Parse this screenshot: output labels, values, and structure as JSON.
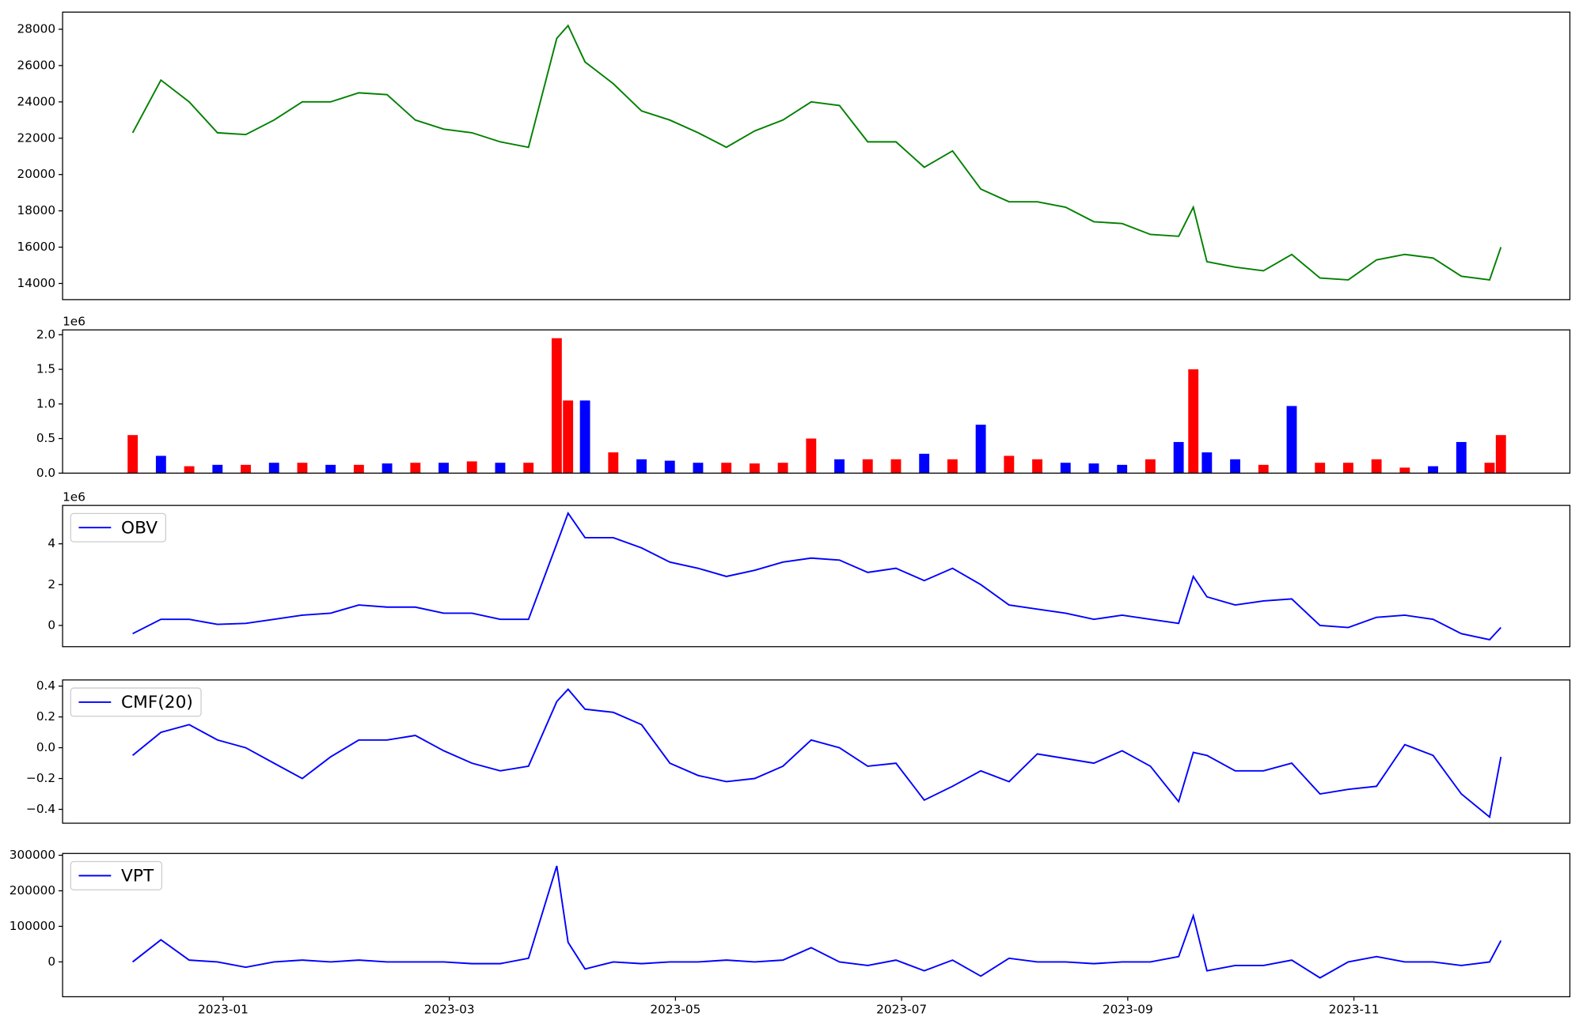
{
  "chart_data": [
    {
      "type": "line",
      "x": [
        -0.8,
        -0.55,
        -0.3,
        -0.05,
        0.2,
        0.45,
        0.7,
        0.95,
        1.2,
        1.45,
        1.7,
        1.95,
        2.2,
        2.45,
        2.7,
        2.95,
        3.05,
        3.2,
        3.45,
        3.7,
        3.95,
        4.2,
        4.45,
        4.7,
        4.95,
        5.2,
        5.45,
        5.7,
        5.95,
        6.2,
        6.45,
        6.7,
        6.95,
        7.2,
        7.45,
        7.7,
        7.95,
        8.2,
        8.45,
        8.58,
        8.7,
        8.95,
        9.2,
        9.45,
        9.7,
        9.95,
        10.2,
        10.45,
        10.7,
        10.95,
        11.2,
        11.3
      ],
      "series": [
        {
          "color": "green",
          "values": [
            22300,
            25200,
            24000,
            22300,
            22200,
            23000,
            24000,
            24000,
            24500,
            24400,
            23000,
            22500,
            22300,
            21800,
            21500,
            27500,
            28200,
            26200,
            25000,
            23500,
            23000,
            22300,
            21500,
            22400,
            23000,
            24000,
            23800,
            21800,
            21800,
            20400,
            21300,
            19200,
            18500,
            18500,
            18200,
            17400,
            17300,
            16700,
            16600,
            18200,
            15200,
            14900,
            14700,
            15600,
            14300,
            14200,
            15300,
            15600,
            15400,
            14400,
            14200,
            16000
          ]
        }
      ],
      "xlim": [
        -1.42,
        11.91
      ],
      "ylim": [
        13111,
        28944
      ],
      "yticks": [
        14000,
        16000,
        18000,
        20000,
        22000,
        24000,
        26000,
        28000
      ]
    },
    {
      "type": "bar",
      "x": [
        -0.8,
        -0.55,
        -0.3,
        -0.05,
        0.2,
        0.45,
        0.7,
        0.95,
        1.2,
        1.45,
        1.7,
        1.95,
        2.2,
        2.45,
        2.7,
        2.95,
        3.05,
        3.2,
        3.45,
        3.7,
        3.95,
        4.2,
        4.45,
        4.7,
        4.95,
        5.2,
        5.45,
        5.7,
        5.95,
        6.2,
        6.45,
        6.7,
        6.95,
        7.2,
        7.45,
        7.7,
        7.95,
        8.2,
        8.45,
        8.58,
        8.7,
        8.95,
        9.2,
        9.45,
        9.7,
        9.95,
        10.2,
        10.45,
        10.7,
        10.95,
        11.2,
        11.3
      ],
      "values": [
        550000,
        250000,
        100000,
        120000,
        120000,
        150000,
        150000,
        120000,
        120000,
        140000,
        150000,
        150000,
        170000,
        150000,
        150000,
        1950000,
        1050000,
        1050000,
        300000,
        200000,
        180000,
        150000,
        150000,
        140000,
        150000,
        500000,
        200000,
        200000,
        200000,
        280000,
        200000,
        700000,
        250000,
        200000,
        150000,
        140000,
        120000,
        200000,
        450000,
        1500000,
        300000,
        200000,
        120000,
        970000,
        150000,
        150000,
        200000,
        80000,
        100000,
        450000,
        150000,
        550000
      ],
      "colors": [
        "red",
        "blue",
        "red",
        "blue",
        "red",
        "blue",
        "red",
        "blue",
        "red",
        "blue",
        "red",
        "blue",
        "red",
        "blue",
        "red",
        "red",
        "red",
        "blue",
        "red",
        "blue",
        "blue",
        "blue",
        "red",
        "red",
        "red",
        "red",
        "blue",
        "red",
        "red",
        "blue",
        "red",
        "blue",
        "red",
        "red",
        "blue",
        "blue",
        "blue",
        "red",
        "blue",
        "red",
        "blue",
        "blue",
        "red",
        "blue",
        "red",
        "red",
        "red",
        "red",
        "blue",
        "blue",
        "red",
        "red"
      ],
      "xlim": [
        -1.42,
        11.91
      ],
      "ylim": [
        0,
        2070000
      ],
      "yticks": [
        {
          "value": 0,
          "label": "0.0"
        },
        {
          "value": 500000,
          "label": "0.5"
        },
        {
          "value": 1000000,
          "label": "1.0"
        },
        {
          "value": 1500000,
          "label": "1.5"
        },
        {
          "value": 2000000,
          "label": "2.0"
        }
      ],
      "offset_label": "1e6"
    },
    {
      "type": "line",
      "x": [
        -0.8,
        -0.55,
        -0.3,
        -0.05,
        0.2,
        0.45,
        0.7,
        0.95,
        1.2,
        1.45,
        1.7,
        1.95,
        2.2,
        2.45,
        2.7,
        2.95,
        3.05,
        3.2,
        3.45,
        3.7,
        3.95,
        4.2,
        4.45,
        4.7,
        4.95,
        5.2,
        5.45,
        5.7,
        5.95,
        6.2,
        6.45,
        6.7,
        6.95,
        7.2,
        7.45,
        7.7,
        7.95,
        8.2,
        8.45,
        8.58,
        8.7,
        8.95,
        9.2,
        9.45,
        9.7,
        9.95,
        10.2,
        10.45,
        10.7,
        10.95,
        11.2,
        11.3
      ],
      "series": [
        {
          "name": "OBV",
          "color": "blue",
          "values": [
            -400000,
            300000,
            300000,
            50000,
            100000,
            300000,
            500000,
            600000,
            1000000,
            900000,
            900000,
            600000,
            600000,
            300000,
            300000,
            4000000,
            5500000,
            4300000,
            4300000,
            3800000,
            3100000,
            2800000,
            2400000,
            2700000,
            3100000,
            3300000,
            3200000,
            2600000,
            2800000,
            2200000,
            2800000,
            2000000,
            1000000,
            800000,
            600000,
            300000,
            500000,
            300000,
            100000,
            2400000,
            1400000,
            1000000,
            1200000,
            1300000,
            0,
            -100000,
            400000,
            500000,
            300000,
            -400000,
            -700000,
            -100000
          ]
        }
      ],
      "xlim": [
        -1.42,
        11.91
      ],
      "ylim": [
        -1040000,
        5880000
      ],
      "yticks": [
        0,
        {
          "value": 2000000,
          "label": "2"
        },
        {
          "value": 4000000,
          "label": "4"
        }
      ],
      "offset_label": "1e6",
      "legend": "upper left"
    },
    {
      "type": "line",
      "x": [
        -0.8,
        -0.55,
        -0.3,
        -0.05,
        0.2,
        0.45,
        0.7,
        0.95,
        1.2,
        1.45,
        1.7,
        1.95,
        2.2,
        2.45,
        2.7,
        2.95,
        3.05,
        3.2,
        3.45,
        3.7,
        3.95,
        4.2,
        4.45,
        4.7,
        4.95,
        5.2,
        5.45,
        5.7,
        5.95,
        6.2,
        6.45,
        6.7,
        6.95,
        7.2,
        7.45,
        7.7,
        7.95,
        8.2,
        8.45,
        8.58,
        8.7,
        8.95,
        9.2,
        9.45,
        9.7,
        9.95,
        10.2,
        10.45,
        10.7,
        10.95,
        11.2,
        11.3
      ],
      "series": [
        {
          "name": "CMF(20)",
          "color": "blue",
          "values": [
            -0.05,
            0.1,
            0.15,
            0.05,
            0,
            -0.1,
            -0.2,
            -0.06,
            0.05,
            0.05,
            0.08,
            -0.02,
            -0.1,
            -0.15,
            -0.12,
            0.3,
            0.38,
            0.25,
            0.23,
            0.15,
            -0.1,
            -0.18,
            -0.22,
            -0.2,
            -0.12,
            0.05,
            0,
            -0.12,
            -0.1,
            -0.34,
            -0.25,
            -0.15,
            -0.22,
            -0.04,
            -0.07,
            -0.1,
            -0.02,
            -0.12,
            -0.35,
            -0.03,
            -0.05,
            -0.15,
            -0.15,
            -0.1,
            -0.3,
            -0.27,
            -0.25,
            0.02,
            -0.05,
            -0.3,
            -0.45,
            -0.06
          ]
        }
      ],
      "xlim": [
        -1.42,
        11.91
      ],
      "ylim": [
        -0.49,
        0.44
      ],
      "yticks": [
        {
          "value": -0.4,
          "label": "−0.4"
        },
        {
          "value": -0.2,
          "label": "−0.2"
        },
        {
          "value": 0,
          "label": "0.0"
        },
        0.2,
        0.4
      ],
      "legend": "upper left"
    },
    {
      "type": "line",
      "x": [
        -0.8,
        -0.55,
        -0.3,
        -0.05,
        0.2,
        0.45,
        0.7,
        0.95,
        1.2,
        1.45,
        1.7,
        1.95,
        2.2,
        2.45,
        2.7,
        2.95,
        3.05,
        3.2,
        3.45,
        3.7,
        3.95,
        4.2,
        4.45,
        4.7,
        4.95,
        5.2,
        5.45,
        5.7,
        5.95,
        6.2,
        6.45,
        6.7,
        6.95,
        7.2,
        7.45,
        7.7,
        7.95,
        8.2,
        8.45,
        8.58,
        8.7,
        8.95,
        9.2,
        9.45,
        9.7,
        9.95,
        10.2,
        10.45,
        10.7,
        10.95,
        11.2,
        11.3
      ],
      "series": [
        {
          "name": "VPT",
          "color": "blue",
          "values": [
            0,
            62000,
            5000,
            0,
            -15000,
            0,
            5000,
            0,
            5000,
            0,
            0,
            0,
            -5000,
            -5000,
            10000,
            270000,
            55000,
            -20000,
            0,
            -5000,
            0,
            0,
            5000,
            0,
            5000,
            40000,
            0,
            -10000,
            5000,
            -25000,
            5000,
            -40000,
            10000,
            0,
            0,
            -5000,
            0,
            0,
            15000,
            130000,
            -25000,
            -10000,
            -10000,
            5000,
            -45000,
            0,
            15000,
            0,
            0,
            -10000,
            0,
            60000
          ]
        }
      ],
      "xlim": [
        -1.42,
        11.91
      ],
      "ylim": [
        -98000,
        305000
      ],
      "yticks": [
        0,
        100000,
        200000,
        300000
      ],
      "xticks": [
        {
          "value": 0,
          "label": "2023-01"
        },
        {
          "value": 2,
          "label": "2023-03"
        },
        {
          "value": 4,
          "label": "2023-05"
        },
        {
          "value": 6,
          "label": "2023-07"
        },
        {
          "value": 8,
          "label": "2023-09"
        },
        {
          "value": 10,
          "label": "2023-11"
        }
      ],
      "legend": "upper left"
    }
  ]
}
